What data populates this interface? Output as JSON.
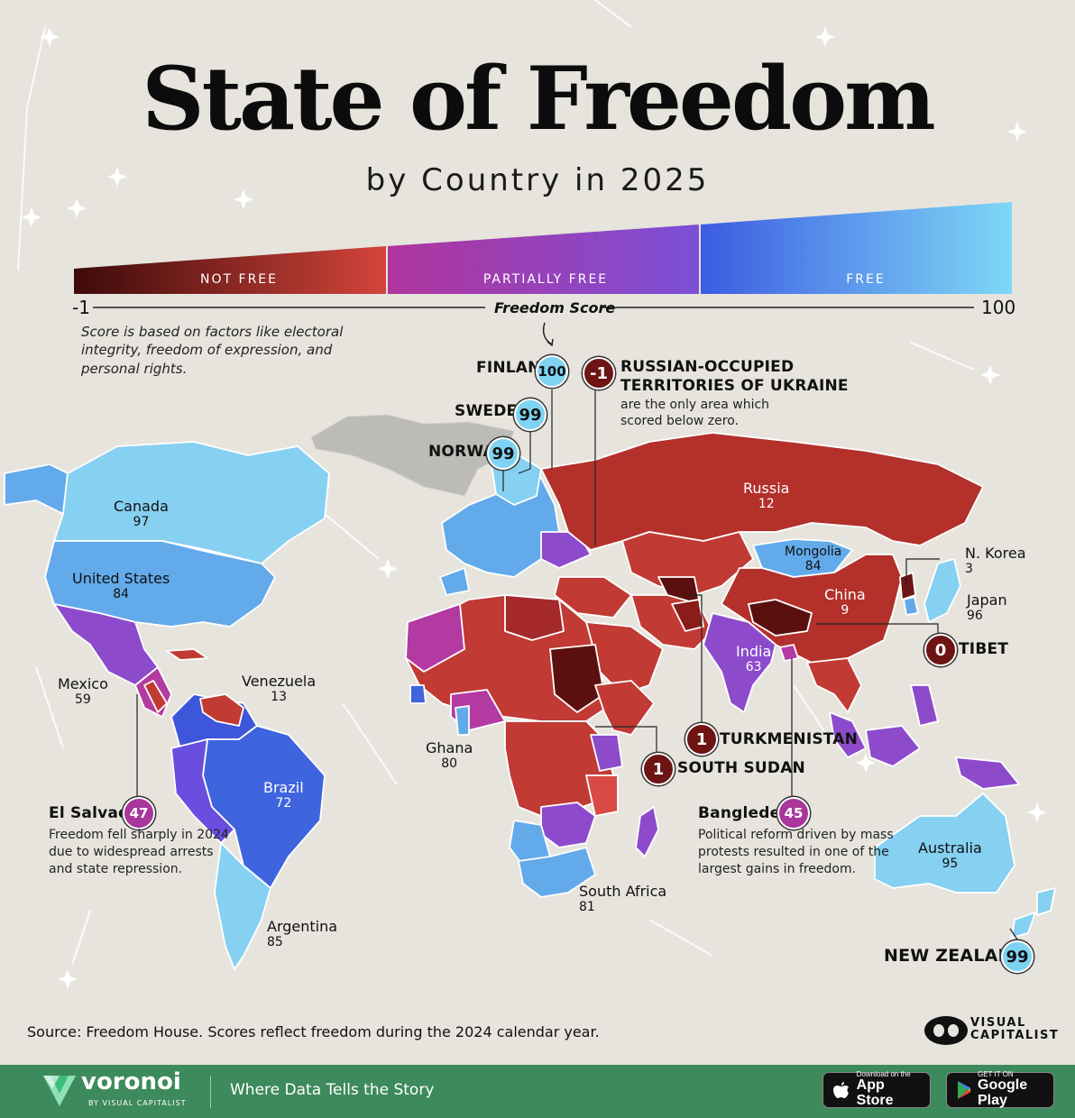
{
  "title": "State of Freedom",
  "subtitle": "by Country in 2025",
  "scale": {
    "min_label": "-1",
    "max_label": "100",
    "axis_title": "Freedom Score",
    "categories": [
      "NOT FREE",
      "PARTIALLY FREE",
      "FREE"
    ],
    "description": "Score is based on factors like electoral integrity, freedom of expression, and personal rights."
  },
  "colors": {
    "not_free_dark": "#4a0b0b",
    "not_free": "#c93a33",
    "partially_free": "#8d45c4",
    "free": "#3d67e6",
    "free_light": "#7fd3f2",
    "background": "#e6e4dd",
    "footer": "#3d8a5c"
  },
  "callouts": {
    "finland": {
      "name": "FINLAND",
      "score": "100"
    },
    "sweden": {
      "name": "SWEDEN",
      "score": "99"
    },
    "norway": {
      "name": "NORWAY",
      "score": "99"
    },
    "ukraine": {
      "score": "-1",
      "name_line1": "RUSSIAN-OCCUPIED",
      "name_line2": "TERRITORIES OF UKRAINE",
      "note_line1": "are the only area which",
      "note_line2": "scored below zero."
    },
    "tibet": {
      "name": "TIBET",
      "score": "0"
    },
    "turkmenistan": {
      "name": "TURKMENISTAN",
      "score": "1"
    },
    "south_sudan": {
      "name": "SOUTH SUDAN",
      "score": "1"
    },
    "bangladesh": {
      "name": "Bangledesh",
      "score": "45",
      "note_line1": "Political reform driven by mass",
      "note_line2": "protests resulted in one of the",
      "note_line3": "largest gains in freedom."
    },
    "el_salvador": {
      "name": "El Salvador",
      "score": "47",
      "note_line1": "Freedom fell sharply in 2024",
      "note_line2": "due to widespread arrests",
      "note_line3": "and state repression."
    },
    "new_zealand": {
      "name": "NEW ZEALAND",
      "score": "99"
    }
  },
  "countries": {
    "canada": {
      "name": "Canada",
      "score": "97"
    },
    "united_states": {
      "name": "United States",
      "score": "84"
    },
    "mexico": {
      "name": "Mexico",
      "score": "59"
    },
    "venezuela": {
      "name": "Venezuela",
      "score": "13"
    },
    "brazil": {
      "name": "Brazil",
      "score": "72"
    },
    "argentina": {
      "name": "Argentina",
      "score": "85"
    },
    "ghana": {
      "name": "Ghana",
      "score": "80"
    },
    "south_africa": {
      "name": "South Africa",
      "score": "81"
    },
    "russia": {
      "name": "Russia",
      "score": "12"
    },
    "mongolia": {
      "name": "Mongolia",
      "score": "84"
    },
    "china": {
      "name": "China",
      "score": "9"
    },
    "north_korea": {
      "name": "N. Korea",
      "score": "3"
    },
    "japan": {
      "name": "Japan",
      "score": "96"
    },
    "india": {
      "name": "India",
      "score": "63"
    },
    "australia": {
      "name": "Australia",
      "score": "95"
    }
  },
  "source": "Source: Freedom House. Scores reflect freedom during the 2024 calendar year.",
  "branding": {
    "visual_capitalist_line1": "VISUAL",
    "visual_capitalist_line2": "CAPITALIST",
    "voronoi": "voronoi",
    "voronoi_sub": "BY VISUAL CAPITALIST",
    "tagline": "Where Data Tells the Story",
    "app_store_small": "Download on the",
    "app_store_large": "App Store",
    "google_play_small": "GET IT ON",
    "google_play_large": "Google Play"
  }
}
